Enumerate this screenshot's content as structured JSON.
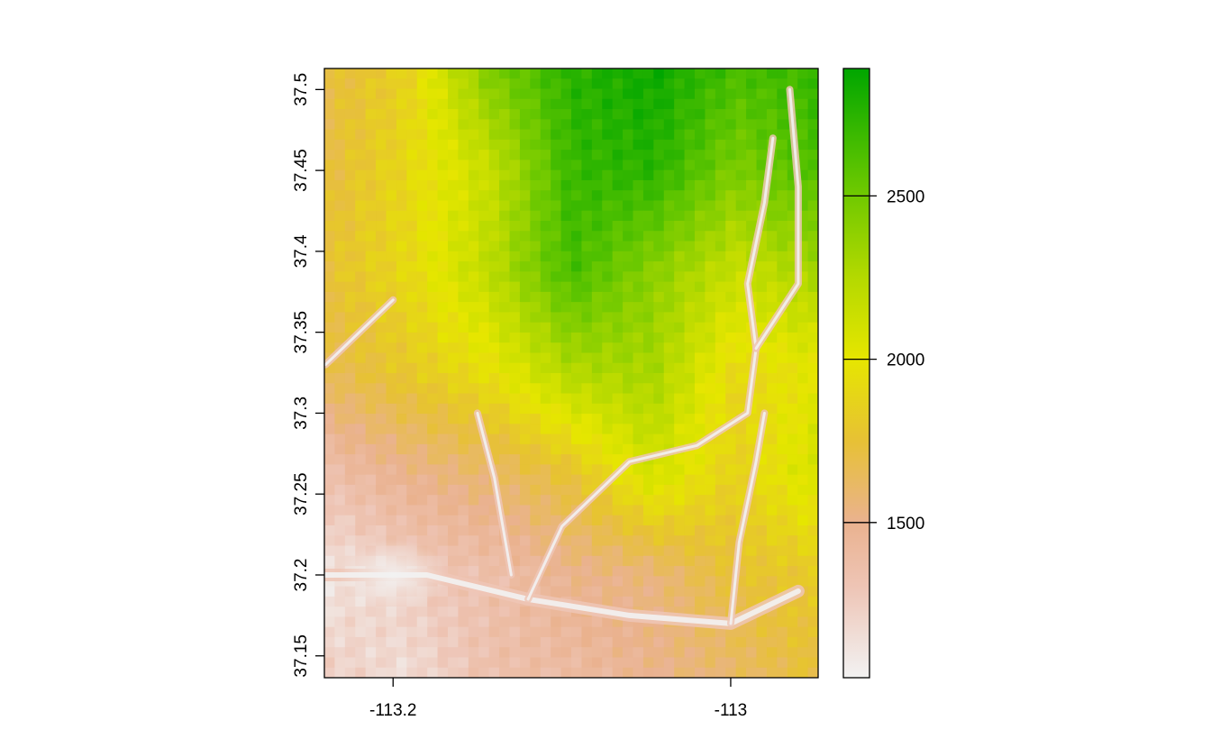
{
  "chart_data": {
    "type": "heatmap",
    "title": "",
    "xlabel": "",
    "ylabel": "",
    "xlim": [
      -113.2407,
      -112.9482
    ],
    "ylim": [
      37.1365,
      37.513
    ],
    "x_ticks": [
      {
        "value": -113.2,
        "label": "-113.2"
      },
      {
        "value": -113.0,
        "label": "-113"
      }
    ],
    "y_ticks": [
      {
        "value": 37.15,
        "label": "37.15"
      },
      {
        "value": 37.2,
        "label": "37.2"
      },
      {
        "value": 37.25,
        "label": "37.25"
      },
      {
        "value": 37.3,
        "label": "37.3"
      },
      {
        "value": 37.35,
        "label": "37.35"
      },
      {
        "value": 37.4,
        "label": "37.4"
      },
      {
        "value": 37.45,
        "label": "37.45"
      },
      {
        "value": 37.5,
        "label": "37.5"
      }
    ],
    "legend": {
      "placement": "right",
      "range": [
        1025,
        2890
      ],
      "ticks": [
        {
          "value": 1500,
          "label": "1500"
        },
        {
          "value": 2000,
          "label": "2000"
        },
        {
          "value": 2500,
          "label": "2500"
        }
      ],
      "color_stops": [
        {
          "value": 1025,
          "color": "#f2f2f2"
        },
        {
          "value": 1300,
          "color": "#eec5b6"
        },
        {
          "value": 1500,
          "color": "#eab28f"
        },
        {
          "value": 1750,
          "color": "#e7c135"
        },
        {
          "value": 2000,
          "color": "#e6e600"
        },
        {
          "value": 2250,
          "color": "#b4d900"
        },
        {
          "value": 2550,
          "color": "#63c600"
        },
        {
          "value": 2890,
          "color": "#00a600"
        }
      ]
    },
    "terrain": {
      "description_values": "elevation (m) grid, approximate",
      "lon_samples": [
        -113.24,
        -113.19,
        -113.14,
        -113.09,
        -113.04,
        -112.99,
        -112.95
      ],
      "lat_samples": [
        37.51,
        37.45,
        37.39,
        37.33,
        37.27,
        37.21,
        37.14
      ],
      "elevation": [
        [
          1700,
          1850,
          2450,
          2750,
          2850,
          2650,
          2700
        ],
        [
          1700,
          1900,
          2150,
          2700,
          2750,
          2450,
          2650
        ],
        [
          1750,
          1900,
          2200,
          2650,
          2400,
          2150,
          2300
        ],
        [
          1650,
          1800,
          1950,
          2250,
          2300,
          1900,
          2000
        ],
        [
          1350,
          1500,
          1600,
          1750,
          2100,
          1850,
          2100
        ],
        [
          1100,
          1250,
          1350,
          1500,
          1550,
          1750,
          1800
        ],
        [
          1250,
          1150,
          1350,
          1400,
          1500,
          1600,
          1750
        ]
      ]
    }
  }
}
